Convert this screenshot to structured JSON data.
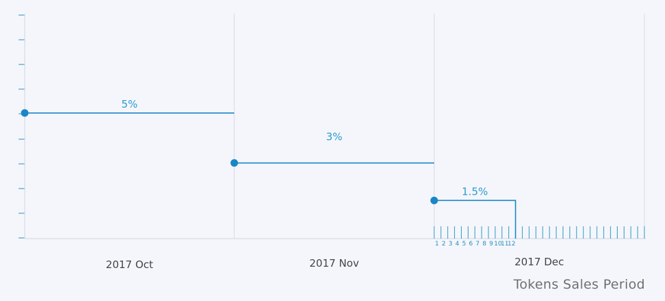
{
  "caption": "Tokens Sales Period",
  "colors": {
    "accent": "#1a86c8",
    "label": "#2a9bd0",
    "grid": "#d5dbe6",
    "background": "#f5f6fb"
  },
  "chart_data": {
    "type": "step-line",
    "xlabel": "Tokens Sales Period",
    "ylabel": "",
    "categories": [
      "2017 Oct",
      "2017 Nov",
      "2017 Dec"
    ],
    "series": [
      {
        "values": [
          5,
          3,
          1.5
        ]
      }
    ],
    "data_labels": [
      "5%",
      "3%",
      "1.5%"
    ],
    "dec_day_labels": [
      "1",
      "2",
      "3",
      "4",
      "5",
      "6",
      "7",
      "8",
      "9",
      "10",
      "11",
      "12"
    ],
    "bonus_end_day": 12,
    "y_ticks_shown": false,
    "grid": false
  }
}
